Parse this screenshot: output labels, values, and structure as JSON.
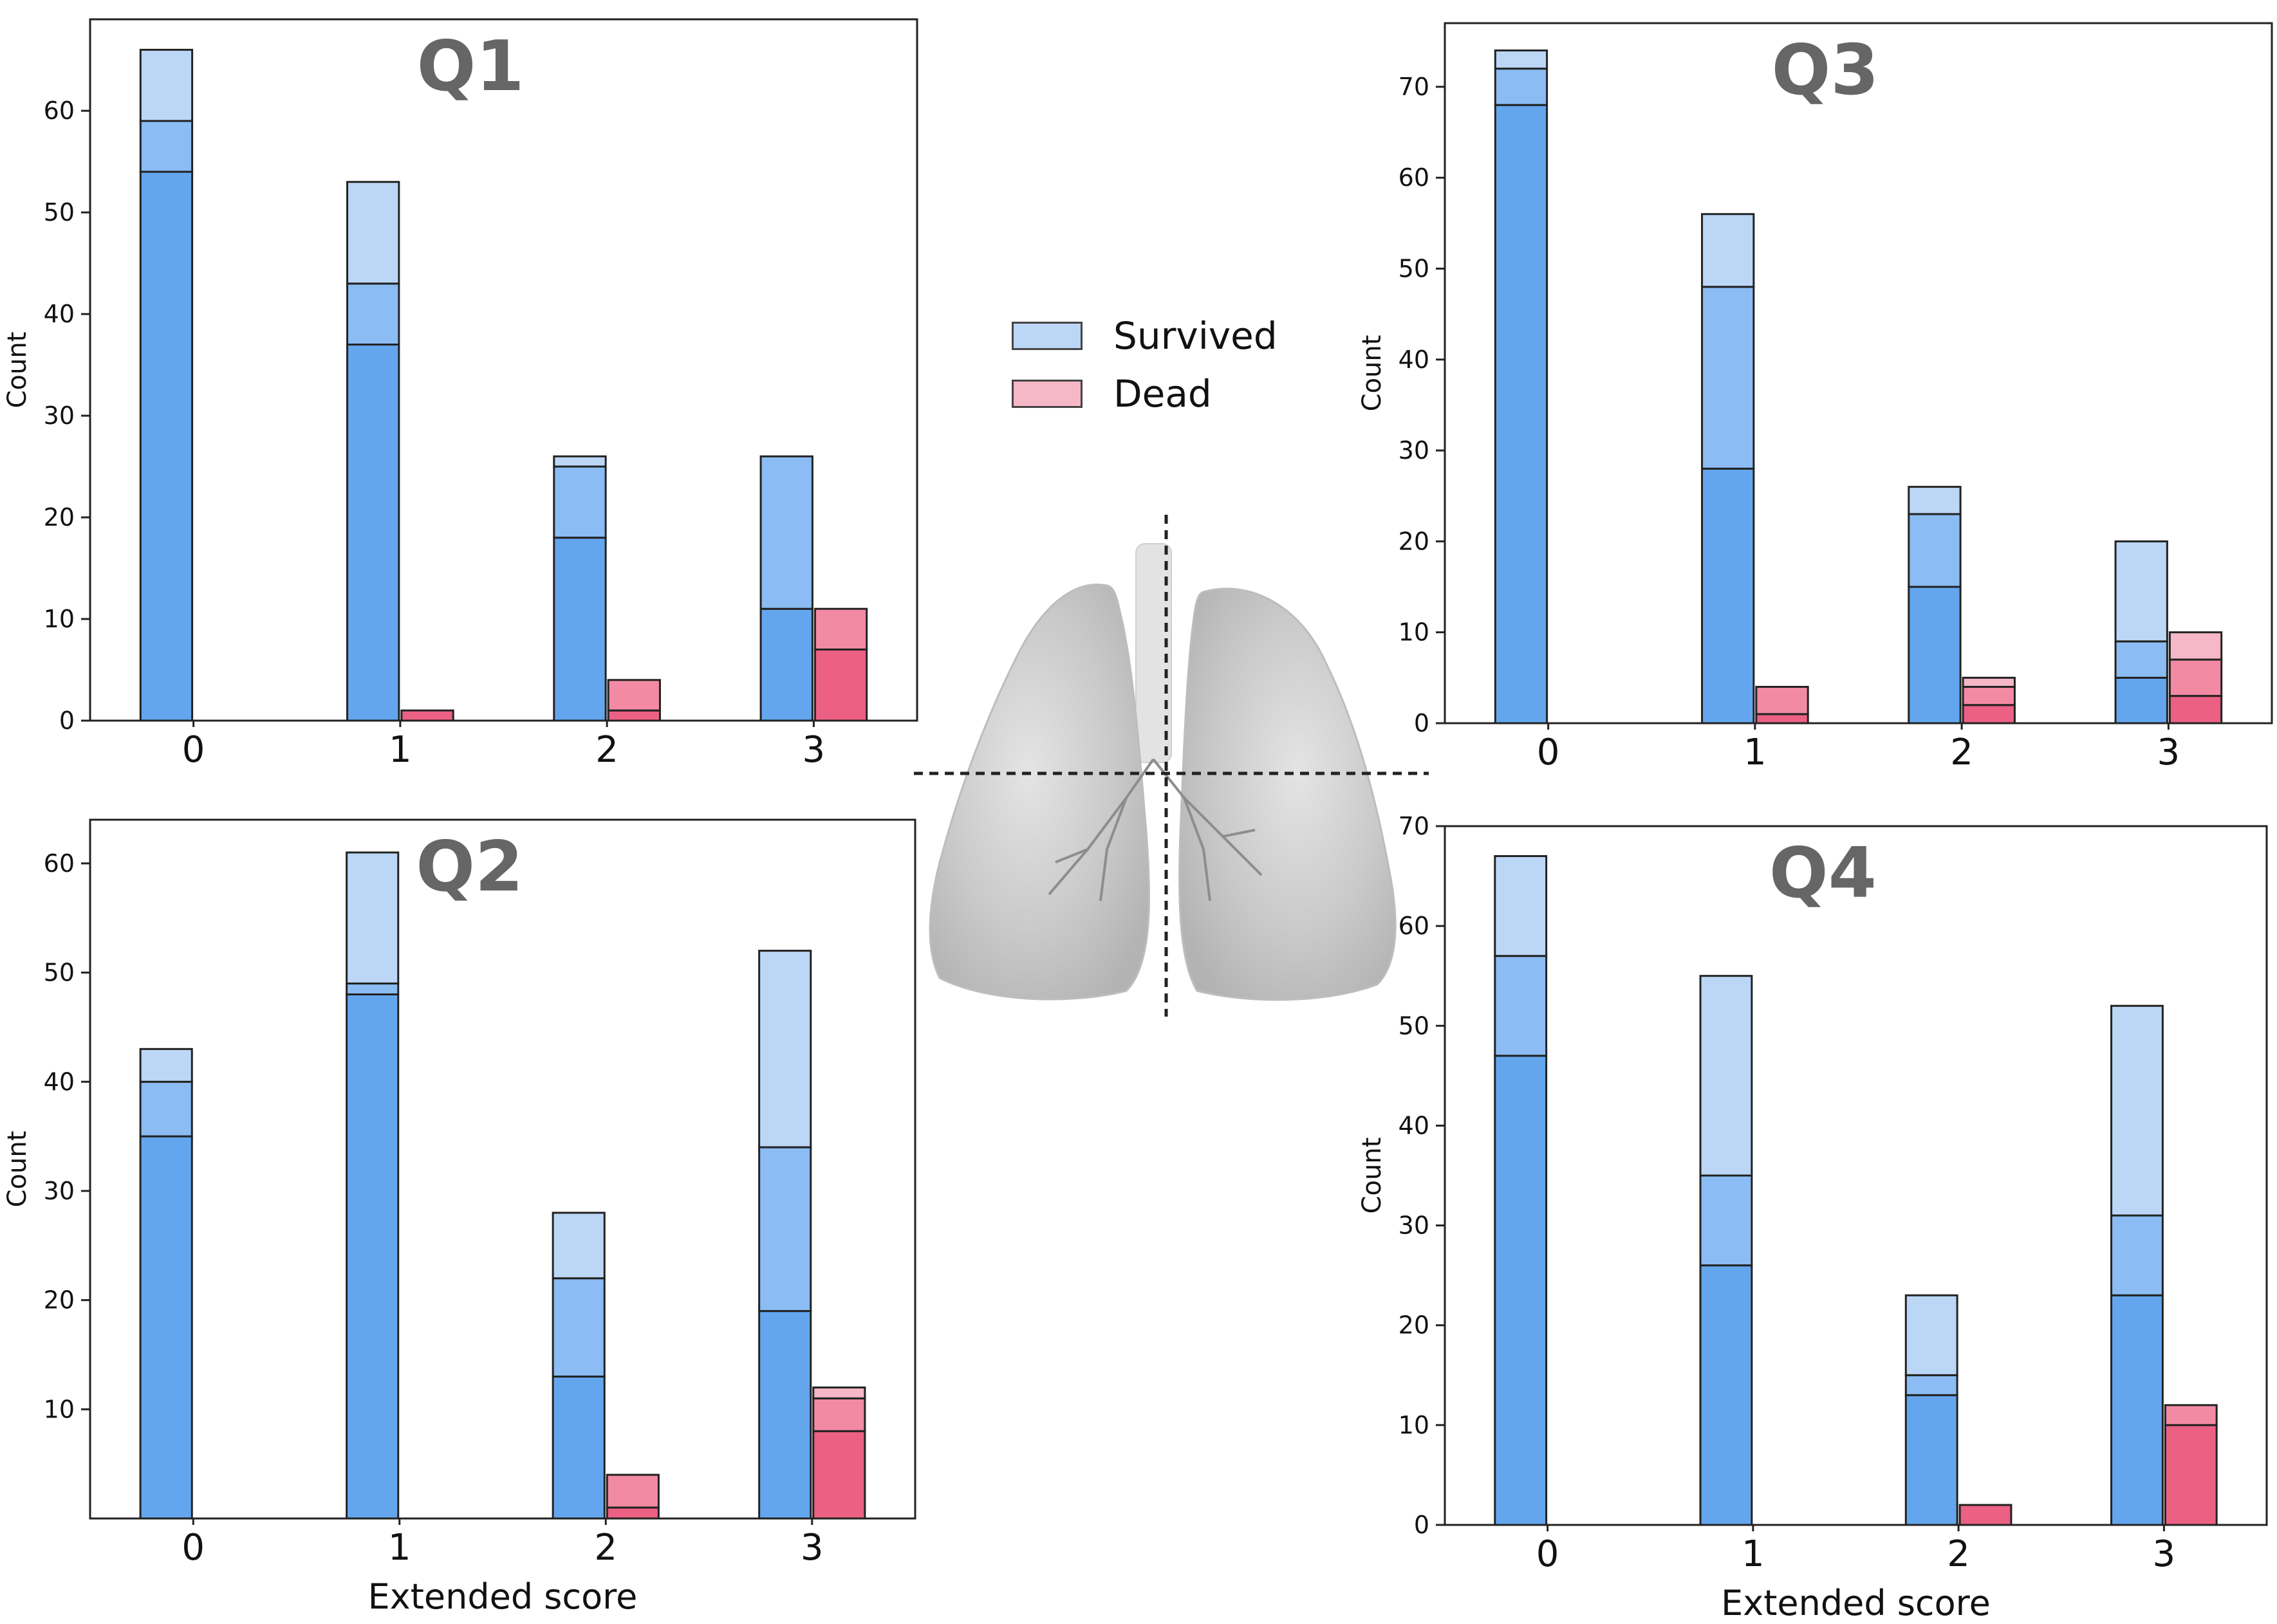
{
  "legend": {
    "items": [
      {
        "label": "Survived",
        "color": "#bcd7f6"
      },
      {
        "label": "Dead",
        "color": "#f6b7c7"
      }
    ]
  },
  "colors": {
    "survived": [
      "#64a6ee",
      "#8bbcf3",
      "#bcd7f6"
    ],
    "dead": [
      "#ec6084",
      "#f28aa3",
      "#f6b7c7"
    ],
    "title": "#666666"
  },
  "chart_data": [
    {
      "type": "bar",
      "stacked": true,
      "title": "Q1",
      "xlabel": "",
      "ylabel": "Count",
      "categories": [
        "0",
        "1",
        "2",
        "3"
      ],
      "ylim": [
        0,
        69
      ],
      "yticks": [
        0,
        10,
        20,
        30,
        40,
        50,
        60
      ],
      "series": [
        {
          "group": "Survived",
          "stacks": [
            [
              54,
              59,
              66
            ],
            [
              37,
              43,
              53
            ],
            [
              18,
              25,
              26
            ],
            [
              11,
              26
            ]
          ]
        },
        {
          "group": "Dead",
          "stacks": [
            [
              0
            ],
            [
              1
            ],
            [
              1,
              4
            ],
            [
              7,
              11
            ]
          ]
        }
      ]
    },
    {
      "type": "bar",
      "stacked": true,
      "title": "Q3",
      "xlabel": "",
      "ylabel": "Count",
      "categories": [
        "0",
        "1",
        "2",
        "3"
      ],
      "ylim": [
        0,
        77
      ],
      "yticks": [
        0,
        10,
        20,
        30,
        40,
        50,
        60,
        70
      ],
      "series": [
        {
          "group": "Survived",
          "stacks": [
            [
              68,
              72,
              74
            ],
            [
              28,
              48,
              56
            ],
            [
              15,
              23,
              26
            ],
            [
              5,
              9,
              20
            ]
          ]
        },
        {
          "group": "Dead",
          "stacks": [
            [
              0
            ],
            [
              1,
              4
            ],
            [
              2,
              4,
              5
            ],
            [
              3,
              7,
              10
            ]
          ]
        }
      ]
    },
    {
      "type": "bar",
      "stacked": true,
      "title": "Q2",
      "xlabel": "Extended score",
      "ylabel": "Count",
      "categories": [
        "0",
        "1",
        "2",
        "3"
      ],
      "ylim": [
        0,
        64
      ],
      "yticks": [
        10,
        20,
        30,
        40,
        50,
        60
      ],
      "series": [
        {
          "group": "Survived",
          "stacks": [
            [
              35,
              40,
              43
            ],
            [
              48,
              49,
              61
            ],
            [
              13,
              22,
              28
            ],
            [
              19,
              34,
              52
            ]
          ]
        },
        {
          "group": "Dead",
          "stacks": [
            [
              0
            ],
            [
              0
            ],
            [
              1,
              4
            ],
            [
              8,
              11,
              12
            ]
          ]
        }
      ]
    },
    {
      "type": "bar",
      "stacked": true,
      "title": "Q4",
      "xlabel": "Extended score",
      "ylabel": "Count",
      "categories": [
        "0",
        "1",
        "2",
        "3"
      ],
      "ylim": [
        0,
        70
      ],
      "yticks": [
        0,
        10,
        20,
        30,
        40,
        50,
        60,
        70
      ],
      "series": [
        {
          "group": "Survived",
          "stacks": [
            [
              47,
              57,
              67
            ],
            [
              26,
              35,
              55
            ],
            [
              13,
              15,
              23
            ],
            [
              23,
              31,
              52
            ]
          ]
        },
        {
          "group": "Dead",
          "stacks": [
            [
              0
            ],
            [
              0
            ],
            [
              2
            ],
            [
              10,
              12
            ]
          ]
        }
      ]
    }
  ]
}
